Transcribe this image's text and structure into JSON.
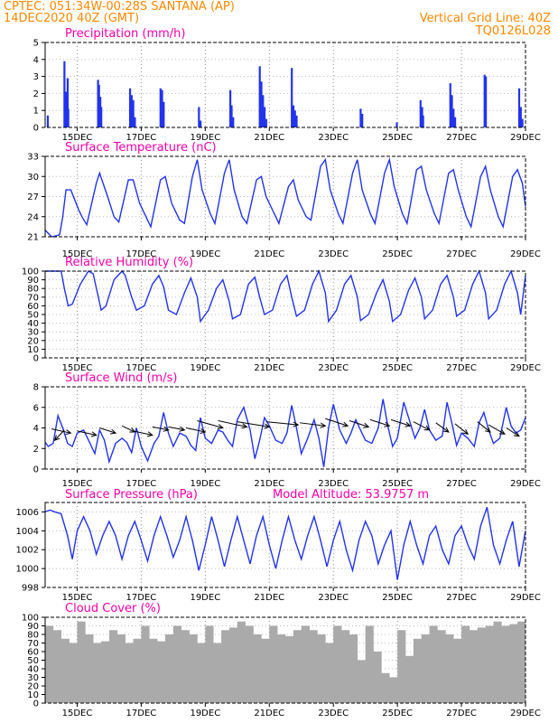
{
  "header": {
    "line1_left": "CPTEC:   051:34W-00:28S   SANTANA (AP)",
    "line2_left": "14DEC2020 40Z (GMT)",
    "line1_right": "Vertical Grid Line: 40Z",
    "line2_right": "TQ0126L028"
  },
  "colors": {
    "header": "#ff8800",
    "panel_title": "#ff00a8",
    "series": "#2233ee",
    "bars": "#2233ee",
    "cloud": "#aaaaaa"
  },
  "x_tick_labels": [
    "15DEC",
    "17DEC",
    "19DEC",
    "21DEC",
    "23DEC",
    "25DEC",
    "27DEC",
    "29DEC"
  ],
  "x_tick_positions": [
    15,
    17,
    19,
    21,
    23,
    25,
    27,
    29
  ],
  "x_range": [
    14,
    29
  ],
  "chart_data": [
    {
      "type": "bar",
      "title": "Precipitation (mm/h)",
      "ylim": [
        0,
        5
      ],
      "yticks": [
        0,
        1,
        2,
        3,
        4,
        5
      ],
      "x": [
        14.08,
        14.6,
        14.65,
        14.7,
        14.72,
        15.65,
        15.68,
        15.72,
        15.75,
        16.65,
        16.7,
        16.75,
        16.8,
        17.6,
        17.65,
        17.7,
        18.8,
        18.85,
        19.78,
        19.82,
        19.87,
        20.7,
        20.75,
        20.8,
        20.85,
        20.9,
        21.7,
        21.75,
        21.8,
        21.85,
        23.85,
        23.9,
        24.98,
        25.72,
        25.77,
        25.8,
        26.65,
        26.7,
        26.75,
        26.8,
        27.72,
        27.76,
        28.8,
        28.85,
        28.9
      ],
      "values": [
        0.7,
        3.9,
        2.1,
        2.9,
        1.1,
        2.8,
        2.5,
        1.8,
        1.2,
        2.3,
        1.9,
        1.6,
        0.6,
        2.3,
        2.2,
        1.5,
        1.2,
        0.4,
        2.2,
        1.3,
        0.6,
        3.6,
        2.7,
        1.9,
        1.2,
        0.5,
        3.5,
        1.3,
        1.0,
        0.7,
        1.1,
        0.8,
        0.3,
        1.6,
        1.2,
        0.7,
        2.6,
        1.9,
        1.1,
        0.6,
        3.1,
        3.0,
        2.3,
        1.2,
        0.5
      ]
    },
    {
      "type": "line",
      "title": "Surface Temperature (nC)",
      "ylim": [
        21,
        33
      ],
      "yticks": [
        21,
        24,
        27,
        30,
        33
      ],
      "x": [
        14,
        14.2,
        14.3,
        14.45,
        14.55,
        14.65,
        14.8,
        15.05,
        15.15,
        15.3,
        15.6,
        15.7,
        15.95,
        16.15,
        16.3,
        16.6,
        16.75,
        16.95,
        17.15,
        17.3,
        17.6,
        17.75,
        17.95,
        18.2,
        18.35,
        18.6,
        18.75,
        18.9,
        19.15,
        19.3,
        19.6,
        19.75,
        19.9,
        20.15,
        20.3,
        20.6,
        20.75,
        20.9,
        21.15,
        21.3,
        21.6,
        21.75,
        21.9,
        22.15,
        22.3,
        22.6,
        22.75,
        22.9,
        23.15,
        23.3,
        23.6,
        23.75,
        23.9,
        24.15,
        24.3,
        24.6,
        24.75,
        24.9,
        25.15,
        25.3,
        25.6,
        25.75,
        25.9,
        26.15,
        26.3,
        26.6,
        26.75,
        26.9,
        27.15,
        27.3,
        27.6,
        27.75,
        27.9,
        28.15,
        28.3,
        28.6,
        28.75,
        28.9,
        29
      ],
      "values": [
        22.0,
        21.0,
        21.1,
        21.3,
        24.0,
        28.0,
        28.0,
        25.0,
        24.0,
        22.8,
        29.0,
        30.5,
        27.0,
        24.0,
        23.2,
        29.5,
        29.5,
        26.0,
        24.0,
        22.5,
        29.5,
        30.0,
        26.0,
        23.5,
        23.0,
        30.0,
        32.5,
        28.0,
        24.5,
        23.0,
        30.5,
        32.5,
        28.0,
        24.0,
        23.0,
        29.5,
        30.0,
        27.0,
        24.5,
        23.0,
        28.5,
        29.5,
        26.5,
        24.0,
        23.5,
        31.5,
        32.5,
        28.0,
        24.5,
        23.0,
        30.5,
        32.5,
        28.0,
        24.5,
        23.0,
        30.5,
        32.5,
        28.5,
        24.5,
        23.0,
        31.0,
        31.5,
        28.0,
        24.5,
        23.0,
        30.5,
        31.0,
        28.0,
        24.0,
        22.5,
        30.0,
        31.5,
        28.0,
        24.0,
        22.5,
        30.0,
        31.0,
        29.0,
        25.5
      ]
    },
    {
      "type": "line",
      "title": "Relative Humidity (%)",
      "ylim": [
        0,
        100
      ],
      "yticks": [
        0,
        10,
        20,
        30,
        40,
        50,
        60,
        70,
        80,
        90,
        100
      ],
      "x": [
        14,
        14.25,
        14.5,
        14.6,
        14.72,
        14.85,
        15.1,
        15.35,
        15.5,
        15.65,
        15.75,
        15.9,
        16.15,
        16.4,
        16.5,
        16.7,
        16.85,
        17.1,
        17.35,
        17.55,
        17.7,
        17.85,
        18.1,
        18.35,
        18.55,
        18.75,
        18.85,
        19.1,
        19.35,
        19.55,
        19.75,
        19.85,
        20.1,
        20.35,
        20.55,
        20.7,
        20.85,
        21.1,
        21.35,
        21.55,
        21.7,
        21.85,
        22.1,
        22.35,
        22.55,
        22.75,
        22.85,
        23.1,
        23.35,
        23.55,
        23.75,
        23.85,
        24.1,
        24.35,
        24.55,
        24.75,
        24.85,
        25.1,
        25.35,
        25.55,
        25.75,
        25.85,
        26.1,
        26.35,
        26.55,
        26.75,
        26.85,
        27.1,
        27.35,
        27.55,
        27.75,
        27.85,
        28.1,
        28.35,
        28.55,
        28.75,
        28.85,
        29
      ],
      "values": [
        100,
        100,
        100,
        80,
        60,
        62,
        85,
        100,
        97,
        72,
        55,
        60,
        90,
        100,
        95,
        70,
        55,
        60,
        85,
        95,
        82,
        55,
        50,
        75,
        92,
        70,
        42,
        55,
        80,
        90,
        65,
        45,
        50,
        85,
        93,
        70,
        50,
        55,
        85,
        95,
        70,
        48,
        55,
        85,
        100,
        75,
        42,
        55,
        85,
        95,
        70,
        43,
        50,
        75,
        90,
        65,
        42,
        50,
        78,
        92,
        70,
        45,
        55,
        85,
        95,
        70,
        48,
        55,
        85,
        100,
        75,
        45,
        55,
        85,
        100,
        75,
        50,
        95
      ]
    },
    {
      "type": "line",
      "title": "Surface Wind (m/s)",
      "ylim": [
        0,
        8
      ],
      "yticks": [
        0,
        2,
        4,
        6,
        8
      ],
      "x": [
        14,
        14.1,
        14.25,
        14.4,
        14.55,
        14.7,
        14.85,
        15.0,
        15.2,
        15.4,
        15.55,
        15.7,
        15.85,
        16.0,
        16.2,
        16.4,
        16.55,
        16.7,
        16.85,
        17.0,
        17.2,
        17.4,
        17.55,
        17.7,
        17.85,
        18.0,
        18.2,
        18.4,
        18.55,
        18.7,
        18.85,
        19.0,
        19.2,
        19.4,
        19.55,
        19.7,
        19.85,
        20.0,
        20.2,
        20.4,
        20.55,
        20.7,
        20.85,
        21.0,
        21.2,
        21.4,
        21.55,
        21.7,
        21.85,
        22.0,
        22.2,
        22.4,
        22.55,
        22.7,
        22.85,
        23.0,
        23.2,
        23.4,
        23.55,
        23.7,
        23.85,
        24.0,
        24.2,
        24.4,
        24.55,
        24.7,
        24.85,
        25.0,
        25.2,
        25.4,
        25.55,
        25.7,
        25.85,
        26.0,
        26.2,
        26.4,
        26.55,
        26.7,
        26.85,
        27.0,
        27.2,
        27.4,
        27.55,
        27.7,
        27.85,
        28.0,
        28.2,
        28.4,
        28.55,
        28.7,
        28.85,
        29.0
      ],
      "values": [
        2.6,
        2.2,
        2.5,
        5.2,
        4.0,
        2.5,
        2.2,
        3.5,
        3.8,
        2.5,
        1.5,
        3.8,
        2.8,
        0.7,
        2.5,
        3.0,
        2.6,
        1.6,
        4.0,
        2.2,
        0.8,
        2.5,
        3.2,
        5.5,
        3.5,
        2.2,
        3.5,
        3.2,
        2.3,
        1.8,
        5.0,
        3.0,
        2.5,
        3.8,
        3.6,
        2.8,
        2.2,
        4.8,
        6.0,
        3.8,
        1.0,
        2.8,
        5.0,
        4.2,
        2.8,
        2.5,
        3.5,
        6.2,
        4.0,
        1.5,
        3.0,
        4.8,
        3.0,
        0.2,
        4.0,
        6.3,
        3.8,
        2.5,
        3.5,
        4.8,
        3.8,
        2.8,
        2.5,
        4.0,
        6.8,
        4.2,
        2.2,
        3.0,
        6.5,
        4.5,
        3.0,
        4.0,
        5.8,
        3.8,
        2.8,
        3.2,
        6.5,
        4.5,
        2.3,
        3.5,
        3.0,
        2.2,
        4.5,
        5.5,
        3.8,
        2.5,
        3.0,
        6.0,
        4.2,
        3.5,
        3.8,
        5.0
      ],
      "vectors": [
        {
          "x": 14.3,
          "y": 2.8,
          "dx": 0.3,
          "dy": 1.0
        },
        {
          "x": 14.8,
          "y": 3.5,
          "dx": -0.6,
          "dy": 0.4
        },
        {
          "x": 15.6,
          "y": 3.3,
          "dx": -0.6,
          "dy": 0.4
        },
        {
          "x": 16.2,
          "y": 3.5,
          "dx": -0.5,
          "dy": 0.5
        },
        {
          "x": 16.8,
          "y": 3.6,
          "dx": -0.4,
          "dy": 0.6
        },
        {
          "x": 17.35,
          "y": 3.3,
          "dx": -0.6,
          "dy": 0.4
        },
        {
          "x": 17.85,
          "y": 3.8,
          "dx": -0.5,
          "dy": 0.3
        },
        {
          "x": 18.35,
          "y": 3.8,
          "dx": -0.5,
          "dy": 0.3
        },
        {
          "x": 19.0,
          "y": 3.6,
          "dx": -0.6,
          "dy": 0.4
        },
        {
          "x": 19.55,
          "y": 4.0,
          "dx": -0.8,
          "dy": 0.7
        },
        {
          "x": 20.3,
          "y": 4.1,
          "dx": -0.9,
          "dy": 0.6
        },
        {
          "x": 21.0,
          "y": 4.1,
          "dx": -1.0,
          "dy": 0.5
        },
        {
          "x": 21.9,
          "y": 4.3,
          "dx": -1.0,
          "dy": 0.3
        },
        {
          "x": 22.75,
          "y": 4.2,
          "dx": -0.8,
          "dy": 0.3
        },
        {
          "x": 23.45,
          "y": 4.2,
          "dx": -0.7,
          "dy": 0.7
        },
        {
          "x": 24.1,
          "y": 4.1,
          "dx": -0.6,
          "dy": 0.6
        },
        {
          "x": 24.75,
          "y": 4.2,
          "dx": -0.6,
          "dy": 0.6
        },
        {
          "x": 25.4,
          "y": 4.2,
          "dx": -0.6,
          "dy": 0.6
        },
        {
          "x": 26.0,
          "y": 3.8,
          "dx": -0.5,
          "dy": 0.8
        },
        {
          "x": 26.6,
          "y": 3.6,
          "dx": -0.4,
          "dy": 0.9
        },
        {
          "x": 27.2,
          "y": 3.4,
          "dx": -0.4,
          "dy": 1.0
        },
        {
          "x": 27.9,
          "y": 3.6,
          "dx": -0.4,
          "dy": 1.0
        },
        {
          "x": 28.35,
          "y": 3.4,
          "dx": -0.5,
          "dy": 0.9
        },
        {
          "x": 28.8,
          "y": 3.2,
          "dx": -0.4,
          "dy": 0.8
        }
      ]
    },
    {
      "type": "line",
      "title": "Surface Pressure (hPa)",
      "extra_label": "Model Altitude: 53.9757 m",
      "ylim": [
        998,
        1007
      ],
      "yticks": [
        998,
        1000,
        1002,
        1004,
        1006
      ],
      "x": [
        14,
        14.15,
        14.3,
        14.5,
        14.7,
        14.85,
        15.0,
        15.2,
        15.4,
        15.6,
        15.8,
        16.0,
        16.2,
        16.4,
        16.6,
        16.8,
        17.0,
        17.2,
        17.4,
        17.6,
        17.8,
        18.0,
        18.2,
        18.4,
        18.6,
        18.8,
        19.0,
        19.2,
        19.4,
        19.6,
        19.8,
        20.0,
        20.2,
        20.4,
        20.6,
        20.8,
        21.0,
        21.2,
        21.4,
        21.6,
        21.8,
        22.0,
        22.2,
        22.4,
        22.6,
        22.8,
        23.0,
        23.2,
        23.4,
        23.6,
        23.8,
        24.0,
        24.2,
        24.4,
        24.6,
        24.8,
        25.0,
        25.2,
        25.4,
        25.6,
        25.8,
        26.0,
        26.2,
        26.4,
        26.6,
        26.8,
        27.0,
        27.2,
        27.4,
        27.6,
        27.8,
        28.0,
        28.2,
        28.4,
        28.6,
        28.8,
        29.0
      ],
      "values": [
        1006.0,
        1006.2,
        1006.0,
        1005.8,
        1003.5,
        1001.0,
        1004.0,
        1005.5,
        1004.0,
        1001.5,
        1003.5,
        1005.0,
        1003.5,
        1001.0,
        1003.5,
        1005.0,
        1003.0,
        1000.8,
        1003.5,
        1005.5,
        1003.5,
        1001.2,
        1003.0,
        1005.5,
        1003.0,
        999.8,
        1002.5,
        1005.5,
        1003.0,
        1000.2,
        1003.0,
        1005.5,
        1003.0,
        1000.5,
        1003.5,
        1005.5,
        1002.5,
        1000.0,
        1003.0,
        1005.5,
        1003.0,
        1001.0,
        1003.5,
        1005.5,
        1003.0,
        1000.2,
        1003.0,
        1005.0,
        1002.0,
        999.8,
        1003.0,
        1005.0,
        1003.5,
        1000.5,
        1002.5,
        1004.0,
        998.8,
        1002.5,
        1005.0,
        1002.5,
        1000.5,
        1003.5,
        1004.5,
        1002.0,
        1000.5,
        1003.5,
        1004.5,
        1002.5,
        1001.0,
        1004.5,
        1006.5,
        1002.5,
        1000.5,
        1003.0,
        1005.0,
        1000.2,
        1004.0
      ]
    },
    {
      "type": "bar",
      "title": "Cloud Cover (%)",
      "ylim": [
        0,
        100
      ],
      "yticks": [
        0,
        10,
        20,
        30,
        40,
        50,
        60,
        70,
        80,
        90,
        100
      ],
      "x": [
        14.0,
        14.25,
        14.5,
        14.75,
        15.0,
        15.25,
        15.5,
        15.75,
        16.0,
        16.25,
        16.5,
        16.75,
        17.0,
        17.25,
        17.5,
        17.75,
        18.0,
        18.25,
        18.5,
        18.75,
        19.0,
        19.25,
        19.5,
        19.75,
        20.0,
        20.25,
        20.5,
        20.75,
        21.0,
        21.25,
        21.5,
        21.75,
        22.0,
        22.25,
        22.5,
        22.75,
        23.0,
        23.25,
        23.5,
        23.75,
        24.0,
        24.25,
        24.5,
        24.75,
        25.0,
        25.25,
        25.5,
        25.75,
        26.0,
        26.25,
        26.5,
        26.75,
        27.0,
        27.25,
        27.5,
        27.75,
        28.0,
        28.25,
        28.5,
        28.75
      ],
      "values": [
        90,
        85,
        75,
        70,
        95,
        80,
        70,
        72,
        85,
        80,
        70,
        75,
        90,
        75,
        72,
        80,
        90,
        85,
        80,
        70,
        90,
        70,
        85,
        88,
        95,
        90,
        80,
        75,
        90,
        80,
        78,
        85,
        90,
        85,
        80,
        70,
        90,
        85,
        80,
        50,
        90,
        60,
        35,
        30,
        85,
        55,
        75,
        80,
        90,
        85,
        80,
        75,
        90,
        85,
        88,
        90,
        95,
        90,
        92,
        95
      ]
    }
  ]
}
